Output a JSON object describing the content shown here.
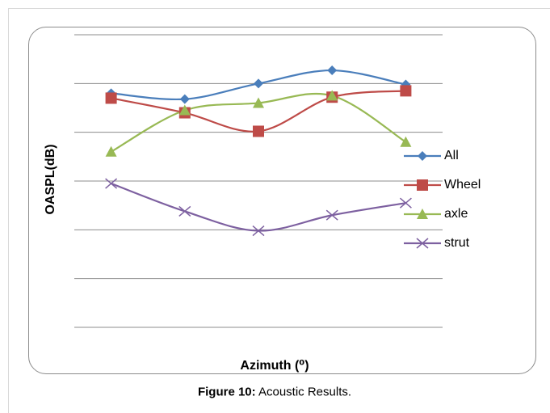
{
  "chart_data": {
    "type": "line",
    "title": "",
    "xlabel": "Azimuth (⁰)",
    "ylabel": "OASPL(dB)",
    "categories": [
      "1",
      "2",
      "3",
      "4",
      "5"
    ],
    "ylim": [
      0,
      6
    ],
    "grid": true,
    "show_tick_labels": false,
    "legend_position": "right",
    "series": [
      {
        "name": "All",
        "color": "#4a7ebb",
        "marker": "diamond",
        "values": [
          4.8,
          4.68,
          5.0,
          5.27,
          4.98
        ]
      },
      {
        "name": "Wheel",
        "color": "#be4b48",
        "marker": "square",
        "values": [
          4.7,
          4.4,
          4.02,
          4.72,
          4.85
        ]
      },
      {
        "name": "axle",
        "color": "#98b954",
        "marker": "triangle",
        "values": [
          3.6,
          4.45,
          4.6,
          4.75,
          3.8
        ]
      },
      {
        "name": "strut",
        "color": "#7d60a0",
        "marker": "x",
        "values": [
          2.95,
          2.38,
          1.98,
          2.3,
          2.55
        ]
      }
    ]
  },
  "caption": {
    "prefix": "Figure 10:",
    "text": " Acoustic Results."
  }
}
